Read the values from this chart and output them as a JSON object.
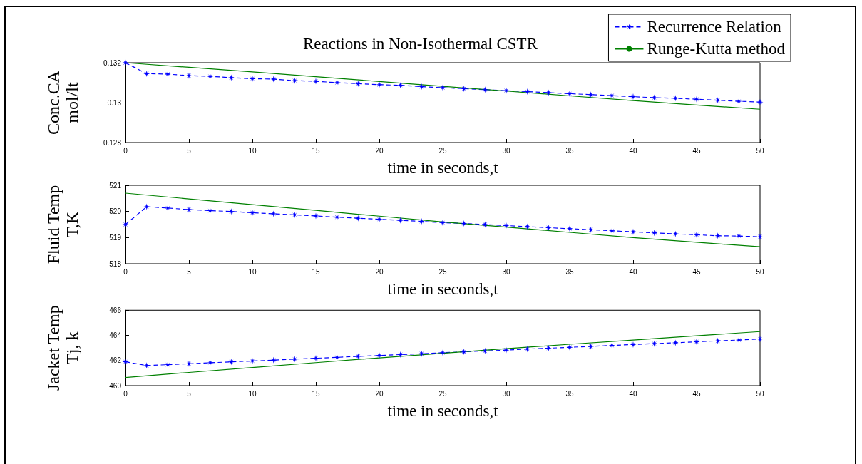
{
  "chart_data": [
    {
      "type": "line",
      "title": "Reactions in Non-Isothermal CSTR",
      "xlabel": "time in seconds,t",
      "ylabel": "Conc.CA\nmol/lt",
      "xlim": [
        0,
        50
      ],
      "xticks": [
        0,
        5,
        10,
        15,
        20,
        25,
        30,
        35,
        40,
        45,
        50
      ],
      "ylim": [
        0.128,
        0.132
      ],
      "yticks": [
        0.128,
        0.13,
        0.132
      ],
      "grid": false,
      "legend": "top right",
      "series": [
        {
          "name": "Recurrence Relation",
          "color": "#0000ff",
          "marker": "star",
          "line_style": "dashed",
          "x": [
            0,
            1.67,
            3.33,
            5,
            6.67,
            8.33,
            10,
            11.67,
            13.33,
            15,
            16.67,
            18.33,
            20,
            21.67,
            23.33,
            25,
            26.67,
            28.33,
            30,
            31.67,
            33.33,
            35,
            36.67,
            38.33,
            40,
            41.67,
            43.33,
            45,
            46.67,
            48.33,
            50
          ],
          "values": [
            0.132,
            0.13145,
            0.13143,
            0.13135,
            0.13132,
            0.13125,
            0.1312,
            0.13118,
            0.1311,
            0.13107,
            0.131,
            0.13095,
            0.1309,
            0.13087,
            0.1308,
            0.13075,
            0.1307,
            0.13065,
            0.1306,
            0.13055,
            0.1305,
            0.13045,
            0.1304,
            0.13035,
            0.1303,
            0.13025,
            0.13022,
            0.13017,
            0.13012,
            0.13007,
            0.13003
          ]
        },
        {
          "name": "Runge-Kutta method",
          "color": "#008000",
          "marker": "none",
          "line_style": "solid",
          "x": [
            0,
            5,
            10,
            15,
            20,
            25,
            30,
            35,
            40,
            45,
            50
          ],
          "values": [
            0.132,
            0.13177,
            0.13154,
            0.1313,
            0.13106,
            0.13082,
            0.13058,
            0.13034,
            0.1301,
            0.12988,
            0.12967
          ]
        }
      ]
    },
    {
      "type": "line",
      "xlabel": "time in seconds,t",
      "ylabel": "Fluid Temp\nT,K",
      "xlim": [
        0,
        50
      ],
      "xticks": [
        0,
        5,
        10,
        15,
        20,
        25,
        30,
        35,
        40,
        45,
        50
      ],
      "ylim": [
        518,
        521
      ],
      "yticks": [
        518,
        519,
        520,
        521
      ],
      "grid": false,
      "legend": false,
      "series": [
        {
          "color": "#0000ff",
          "marker": "star",
          "line_style": "dashed",
          "x": [
            0,
            1.67,
            3.33,
            5,
            6.67,
            8.33,
            10,
            11.67,
            13.33,
            15,
            16.67,
            18.33,
            20,
            21.67,
            23.33,
            25,
            26.67,
            28.33,
            30,
            31.67,
            33.33,
            35,
            36.67,
            38.33,
            40,
            41.67,
            43.33,
            45,
            46.67,
            48.33,
            50
          ],
          "values": [
            519.5,
            520.18,
            520.13,
            520.07,
            520.03,
            520.0,
            519.95,
            519.91,
            519.87,
            519.83,
            519.78,
            519.74,
            519.7,
            519.66,
            519.62,
            519.57,
            519.54,
            519.5,
            519.46,
            519.42,
            519.38,
            519.34,
            519.3,
            519.26,
            519.22,
            519.18,
            519.14,
            519.11,
            519.07,
            519.06,
            519.03
          ]
        },
        {
          "color": "#008000",
          "marker": "none",
          "line_style": "solid",
          "x": [
            0,
            5,
            10,
            15,
            20,
            25,
            30,
            35,
            40,
            45,
            50
          ],
          "values": [
            520.7,
            520.48,
            520.26,
            520.04,
            519.82,
            519.6,
            519.4,
            519.2,
            519.0,
            518.82,
            518.65
          ]
        }
      ]
    },
    {
      "type": "line",
      "xlabel": "time in seconds,t",
      "ylabel": "Jacket Temp\nTj, k",
      "xlim": [
        0,
        50
      ],
      "xticks": [
        0,
        5,
        10,
        15,
        20,
        25,
        30,
        35,
        40,
        45,
        50
      ],
      "ylim": [
        460,
        466
      ],
      "yticks": [
        460,
        462,
        464,
        466
      ],
      "grid": false,
      "legend": false,
      "series": [
        {
          "color": "#0000ff",
          "marker": "star",
          "line_style": "dashed",
          "x": [
            0,
            1.67,
            3.33,
            5,
            6.67,
            8.33,
            10,
            11.67,
            13.33,
            15,
            16.67,
            18.33,
            20,
            21.67,
            23.33,
            25,
            26.67,
            28.33,
            30,
            31.67,
            33.33,
            35,
            36.67,
            38.33,
            40,
            41.67,
            43.33,
            45,
            46.67,
            48.33,
            50
          ],
          "values": [
            461.9,
            461.6,
            461.67,
            461.74,
            461.82,
            461.89,
            461.96,
            462.03,
            462.11,
            462.18,
            462.25,
            462.33,
            462.4,
            462.47,
            462.54,
            462.62,
            462.69,
            462.76,
            462.83,
            462.91,
            462.98,
            463.05,
            463.12,
            463.2,
            463.27,
            463.34,
            463.41,
            463.49,
            463.56,
            463.63,
            463.7
          ]
        },
        {
          "color": "#008000",
          "marker": "none",
          "line_style": "solid",
          "x": [
            0,
            5,
            10,
            15,
            20,
            25,
            30,
            35,
            40,
            45,
            50
          ],
          "values": [
            460.65,
            461.05,
            461.44,
            461.83,
            462.21,
            462.58,
            462.94,
            463.29,
            463.63,
            463.97,
            464.3
          ]
        }
      ]
    }
  ]
}
